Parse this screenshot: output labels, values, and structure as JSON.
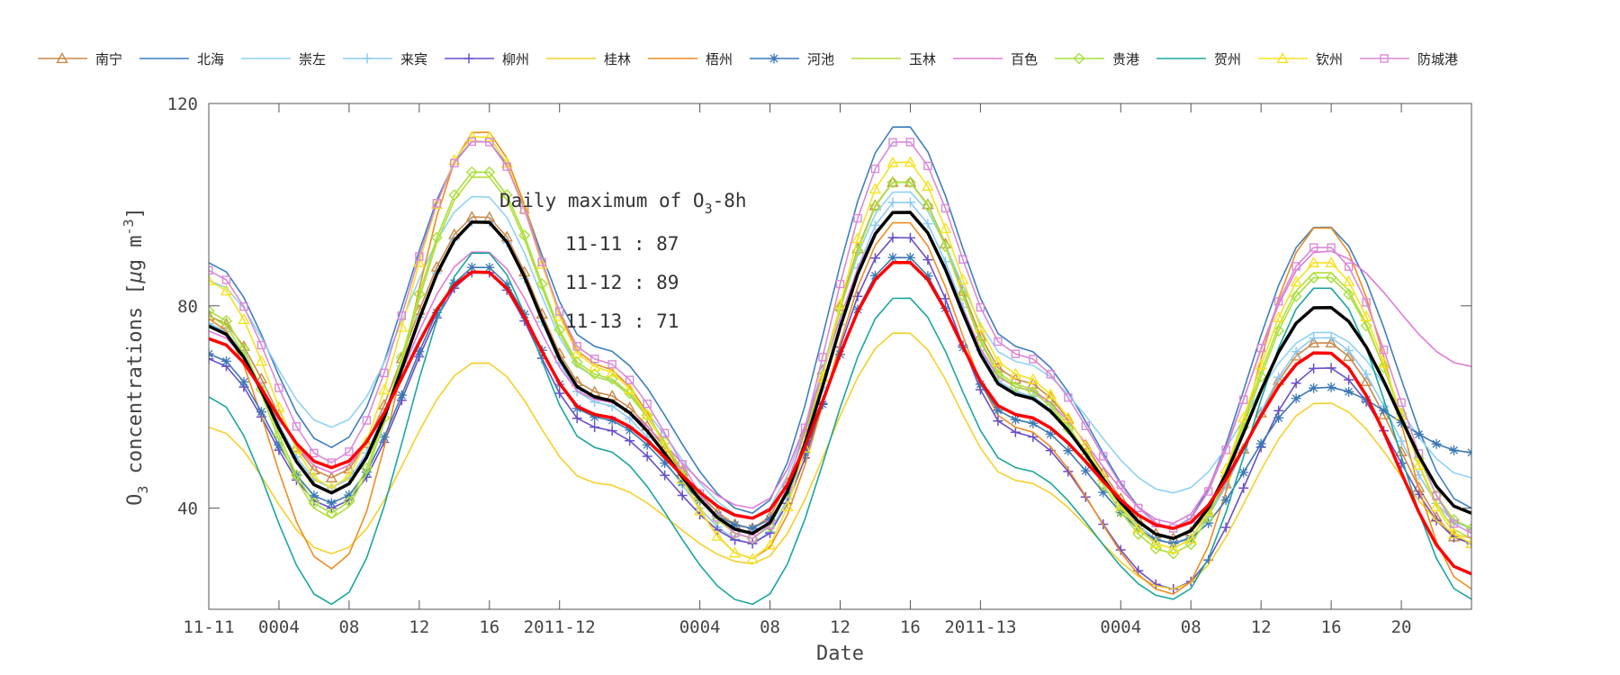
{
  "chart_data": {
    "type": "line",
    "xlabel": "Date",
    "ylabel": "O",
    "ylabel_sub": "3",
    "ylabel_rest": " concentrations [",
    "ylabel_mu": "μ",
    "ylabel_unit": "g m",
    "ylabel_sup": "-3",
    "ylabel_close": "]",
    "ylim": [
      20,
      120
    ],
    "xlim": [
      0,
      72
    ],
    "yticks": [
      40,
      80,
      120
    ],
    "xticks": [
      {
        "x": 0,
        "label": "11-11"
      },
      {
        "x": 4,
        "label": "0004"
      },
      {
        "x": 8,
        "label": "08"
      },
      {
        "x": 12,
        "label": "12"
      },
      {
        "x": 16,
        "label": "16"
      },
      {
        "x": 20,
        "label": "2011-12"
      },
      {
        "x": 28,
        "label": "0004"
      },
      {
        "x": 32,
        "label": "08"
      },
      {
        "x": 36,
        "label": "12"
      },
      {
        "x": 40,
        "label": "16"
      },
      {
        "x": 44,
        "label": "2011-13"
      },
      {
        "x": 52,
        "label": "0004"
      },
      {
        "x": 56,
        "label": "08"
      },
      {
        "x": 60,
        "label": "12"
      },
      {
        "x": 64,
        "label": "16"
      },
      {
        "x": 68,
        "label": "20"
      }
    ],
    "annotation": {
      "title_main": "Daily maximum of O",
      "title_sub": "3",
      "title_rest": "-8h",
      "lines": [
        "11-11 : 87",
        "11-12 : 89",
        "11-13 : 71"
      ]
    },
    "series": [
      {
        "name": "南宁",
        "color": "#c98a4a",
        "marker": "triangle",
        "peaks": [
          98,
          105,
          73
        ],
        "troughs": [
          46,
          36,
          34
        ],
        "endVal": 33
      },
      {
        "name": "北海",
        "color": "#3d7fc0",
        "marker": "none",
        "peaks": [
          113,
          116,
          96
        ],
        "troughs": [
          52,
          39,
          36
        ],
        "endVal": 40
      },
      {
        "name": "崇左",
        "color": "#8fd2f2",
        "marker": "none",
        "peaks": [
          102,
          103,
          75
        ],
        "troughs": [
          56,
          38,
          43
        ],
        "endVal": 46
      },
      {
        "name": "来宾",
        "color": "#8ecaf2",
        "marker": "plus",
        "peaks": [
          97,
          101,
          74
        ],
        "troughs": [
          44,
          33,
          33
        ],
        "endVal": 36
      },
      {
        "name": "柳州",
        "color": "#6a4fc7",
        "marker": "plus",
        "peaks": [
          87,
          94,
          68
        ],
        "troughs": [
          40,
          33,
          24
        ],
        "endVal": 33
      },
      {
        "name": "桂林",
        "color": "#f5d02a",
        "marker": "none",
        "peaks": [
          69,
          75,
          61
        ],
        "troughs": [
          31,
          29,
          24
        ],
        "endVal": 34
      },
      {
        "name": "梧州",
        "color": "#f08c20",
        "marker": "none",
        "peaks": [
          115,
          97,
          96
        ],
        "troughs": [
          28,
          30,
          23
        ],
        "endVal": 24
      },
      {
        "name": "河池",
        "color": "#3b78b5",
        "marker": "star",
        "peaks": [
          88,
          90,
          64
        ],
        "troughs": [
          41,
          36,
          33
        ],
        "endVal": 51
      },
      {
        "name": "玉林",
        "color": "#b5de3c",
        "marker": "none",
        "peaks": [
          106,
          105,
          87
        ],
        "troughs": [
          38,
          34,
          32
        ],
        "endVal": 34
      },
      {
        "name": "百色",
        "color": "#e07ad6",
        "marker": "none",
        "peaks": [
          91,
          99,
          91
        ],
        "troughs": [
          47,
          40,
          37
        ],
        "endVal": 68
      },
      {
        "name": "贵港",
        "color": "#a8e03a",
        "marker": "diamond",
        "peaks": [
          107,
          105,
          86
        ],
        "troughs": [
          39,
          34,
          31
        ],
        "endVal": 36
      },
      {
        "name": "贺州",
        "color": "#1aa69e",
        "marker": "none",
        "peaks": [
          91,
          82,
          84
        ],
        "troughs": [
          21,
          21,
          22
        ],
        "endVal": 22
      },
      {
        "name": "钦州",
        "color": "#f5e222",
        "marker": "triangle",
        "peaks": [
          114,
          109,
          89
        ],
        "troughs": [
          44,
          30,
          32
        ],
        "endVal": 33
      },
      {
        "name": "防城港",
        "color": "#d98ad8",
        "marker": "square",
        "peaks": [
          113,
          113,
          92
        ],
        "troughs": [
          49,
          34,
          36
        ],
        "endVal": 35
      },
      {
        "name": "",
        "color": "#000000",
        "marker": "none",
        "peaks": [
          97,
          99,
          80
        ],
        "troughs": [
          43,
          35,
          34
        ],
        "endVal": 39,
        "bold": true,
        "legend": false
      },
      {
        "name": "",
        "color": "#ff0000",
        "marker": "none",
        "peaks": [
          87,
          89,
          71
        ],
        "troughs": [
          48,
          38,
          36
        ],
        "endVal": 27,
        "bold": true,
        "legend": false
      }
    ]
  }
}
